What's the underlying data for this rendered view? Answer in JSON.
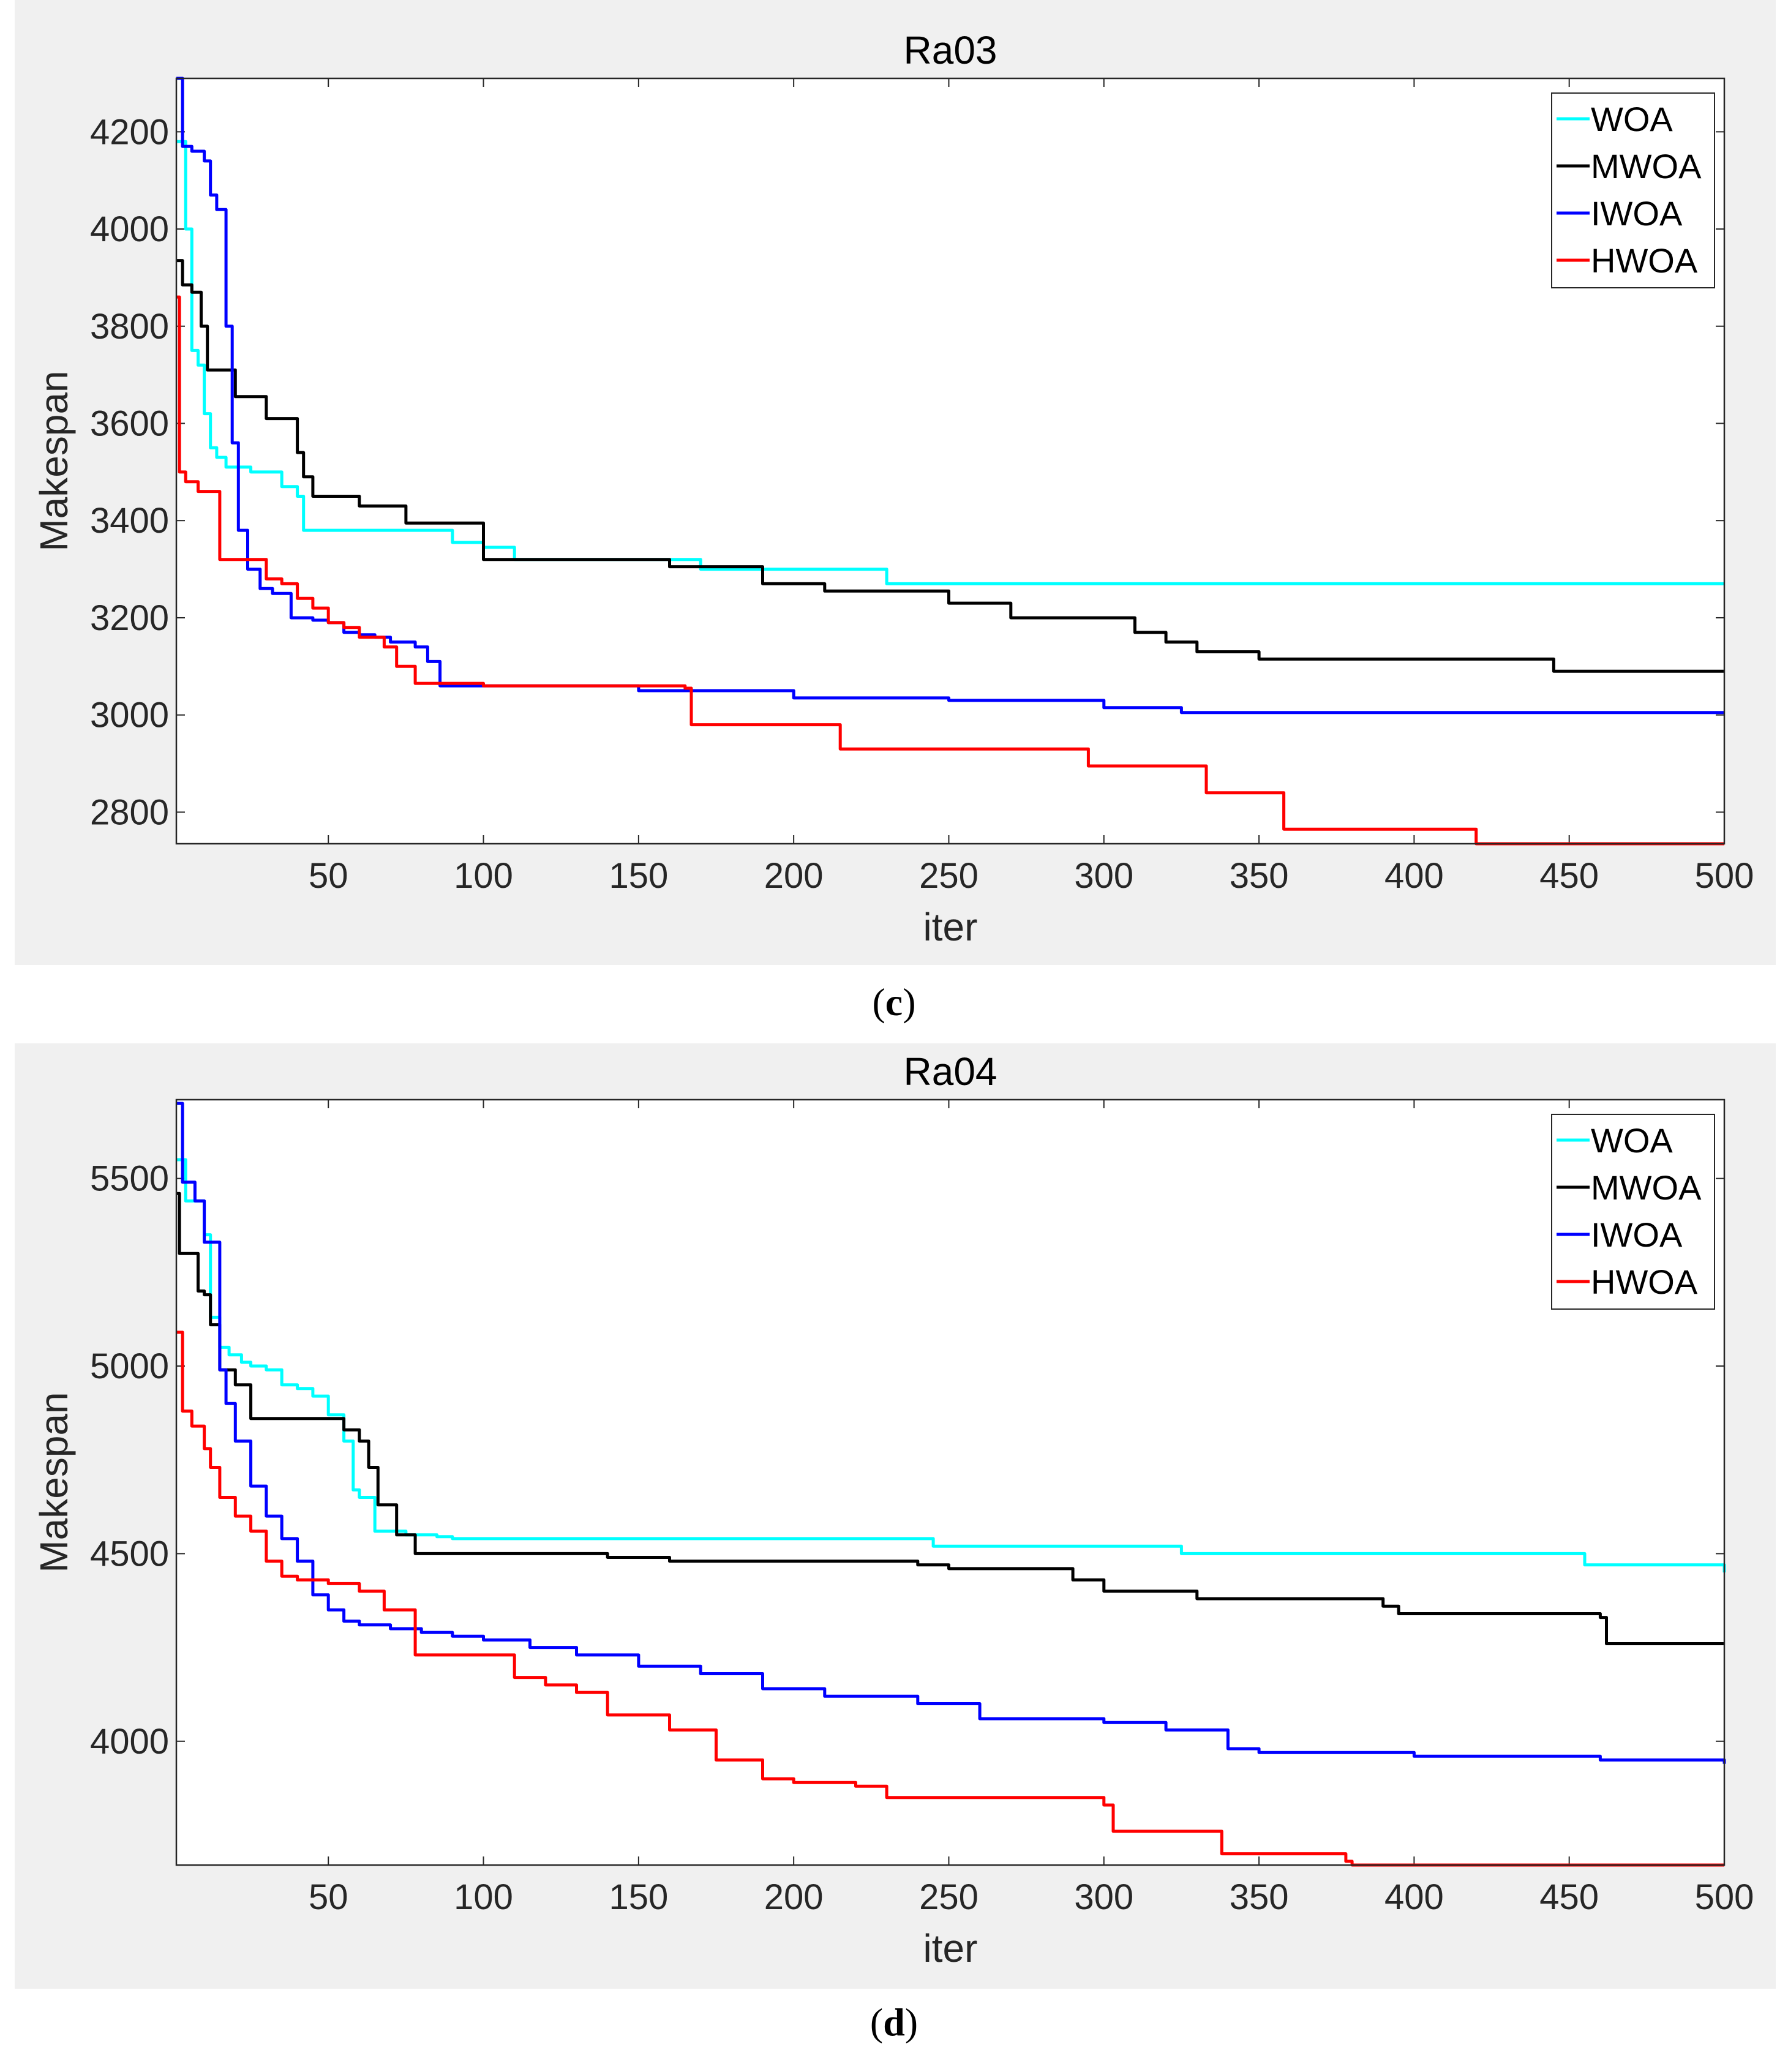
{
  "chart_data": [
    {
      "type": "line",
      "panel": "c",
      "title": "Ra03",
      "xlabel": "iter",
      "ylabel": "Makespan",
      "xlim": [
        1,
        500
      ],
      "ylim": [
        2735,
        4310
      ],
      "xticks": [
        50,
        100,
        150,
        200,
        250,
        300,
        350,
        400,
        450,
        500
      ],
      "yticks": [
        2800,
        3000,
        3200,
        3400,
        3600,
        3800,
        4000,
        4200
      ],
      "legend_position": "top-right",
      "series": [
        {
          "name": "WOA",
          "color": "#00ffff",
          "x": [
            1,
            4,
            6,
            8,
            10,
            12,
            14,
            17,
            25,
            35,
            40,
            42,
            90,
            100,
            110,
            170,
            230,
            500
          ],
          "y": [
            4180,
            4000,
            3750,
            3720,
            3620,
            3550,
            3530,
            3510,
            3500,
            3470,
            3450,
            3380,
            3355,
            3345,
            3320,
            3300,
            3270,
            3270
          ]
        },
        {
          "name": "MWOA",
          "color": "#000000",
          "x": [
            1,
            3,
            6,
            9,
            11,
            18,
            20,
            30,
            40,
            42,
            45,
            60,
            75,
            99,
            100,
            110,
            160,
            190,
            210,
            250,
            270,
            280,
            310,
            320,
            330,
            350,
            440,
            445,
            500
          ],
          "y": [
            3935,
            3885,
            3870,
            3800,
            3710,
            3710,
            3655,
            3610,
            3540,
            3490,
            3450,
            3430,
            3395,
            3395,
            3320,
            3320,
            3305,
            3270,
            3255,
            3230,
            3200,
            3200,
            3170,
            3150,
            3130,
            3115,
            3115,
            3090,
            3090
          ]
        },
        {
          "name": "IWOA",
          "color": "#0000ff",
          "x": [
            1,
            3,
            6,
            10,
            12,
            14,
            17,
            19,
            21,
            24,
            28,
            32,
            38,
            45,
            50,
            55,
            60,
            65,
            70,
            78,
            82,
            86,
            100,
            150,
            200,
            250,
            300,
            325,
            500
          ],
          "y": [
            4310,
            4170,
            4160,
            4140,
            4070,
            4040,
            3800,
            3560,
            3380,
            3300,
            3260,
            3250,
            3200,
            3195,
            3190,
            3170,
            3165,
            3160,
            3150,
            3140,
            3110,
            3060,
            3060,
            3050,
            3035,
            3030,
            3015,
            3005,
            3005
          ]
        },
        {
          "name": "HWOA",
          "color": "#ff0000",
          "x": [
            1,
            2,
            4,
            8,
            12,
            15,
            20,
            25,
            30,
            35,
            40,
            45,
            50,
            55,
            60,
            68,
            72,
            78,
            100,
            165,
            167,
            210,
            215,
            290,
            295,
            330,
            333,
            355,
            358,
            415,
            420,
            500
          ],
          "y": [
            3860,
            3500,
            3480,
            3460,
            3460,
            3320,
            3320,
            3320,
            3280,
            3270,
            3240,
            3220,
            3190,
            3180,
            3160,
            3140,
            3100,
            3065,
            3060,
            3055,
            2980,
            2980,
            2930,
            2930,
            2895,
            2895,
            2840,
            2840,
            2765,
            2765,
            2735,
            2735
          ]
        }
      ]
    },
    {
      "type": "line",
      "panel": "d",
      "title": "Ra04",
      "xlabel": "iter",
      "ylabel": "Makespan",
      "xlim": [
        1,
        500
      ],
      "ylim": [
        3670,
        5710
      ],
      "xticks": [
        50,
        100,
        150,
        200,
        250,
        300,
        350,
        400,
        450,
        500
      ],
      "yticks": [
        4000,
        4500,
        5000,
        5500
      ],
      "legend_position": "top-right",
      "series": [
        {
          "name": "WOA",
          "color": "#00ffff",
          "x": [
            1,
            4,
            8,
            10,
            12,
            15,
            18,
            22,
            25,
            30,
            35,
            40,
            45,
            50,
            55,
            58,
            60,
            65,
            70,
            75,
            80,
            85,
            90,
            100,
            245,
            325,
            455,
            495,
            500
          ],
          "y": [
            5550,
            5440,
            5440,
            5350,
            5130,
            5050,
            5030,
            5010,
            5000,
            4990,
            4950,
            4940,
            4920,
            4870,
            4800,
            4670,
            4650,
            4560,
            4560,
            4550,
            4550,
            4545,
            4540,
            4540,
            4520,
            4500,
            4470,
            4470,
            4450
          ]
        },
        {
          "name": "MWOA",
          "color": "#000000",
          "x": [
            1,
            2,
            5,
            8,
            10,
            12,
            15,
            20,
            25,
            50,
            55,
            60,
            63,
            66,
            70,
            72,
            75,
            78,
            100,
            140,
            160,
            240,
            250,
            290,
            300,
            330,
            390,
            395,
            460,
            462,
            500
          ],
          "y": [
            5460,
            5300,
            5300,
            5200,
            5190,
            5110,
            4990,
            4950,
            4860,
            4860,
            4830,
            4800,
            4730,
            4630,
            4630,
            4550,
            4550,
            4500,
            4500,
            4490,
            4480,
            4470,
            4460,
            4430,
            4400,
            4380,
            4360,
            4340,
            4330,
            4260,
            4260
          ]
        },
        {
          "name": "IWOA",
          "color": "#0000ff",
          "x": [
            1,
            3,
            7,
            10,
            13,
            15,
            17,
            20,
            25,
            30,
            35,
            40,
            45,
            50,
            55,
            60,
            70,
            80,
            90,
            100,
            115,
            130,
            150,
            170,
            190,
            210,
            240,
            260,
            300,
            320,
            340,
            350,
            400,
            450,
            460,
            500
          ],
          "y": [
            5700,
            5490,
            5440,
            5330,
            5330,
            4990,
            4900,
            4800,
            4680,
            4600,
            4540,
            4480,
            4390,
            4350,
            4320,
            4310,
            4300,
            4290,
            4280,
            4270,
            4250,
            4230,
            4200,
            4180,
            4140,
            4120,
            4100,
            4060,
            4050,
            4030,
            3980,
            3970,
            3960,
            3960,
            3950,
            3940
          ]
        },
        {
          "name": "HWOA",
          "color": "#ff0000",
          "x": [
            1,
            3,
            6,
            10,
            12,
            15,
            20,
            25,
            30,
            35,
            40,
            45,
            50,
            60,
            68,
            75,
            78,
            100,
            110,
            120,
            130,
            140,
            150,
            160,
            170,
            175,
            180,
            190,
            200,
            220,
            230,
            280,
            300,
            303,
            335,
            338,
            355,
            378,
            380,
            500
          ],
          "y": [
            5090,
            4880,
            4840,
            4780,
            4730,
            4650,
            4600,
            4560,
            4480,
            4440,
            4430,
            4430,
            4420,
            4400,
            4350,
            4350,
            4230,
            4230,
            4170,
            4150,
            4130,
            4070,
            4070,
            4030,
            4030,
            3950,
            3950,
            3900,
            3890,
            3880,
            3850,
            3850,
            3830,
            3760,
            3760,
            3700,
            3700,
            3680,
            3670,
            3670
          ]
        }
      ]
    }
  ],
  "captions": {
    "c": {
      "open": "(",
      "letter": "c",
      "close": ")"
    },
    "d": {
      "open": "(",
      "letter": "d",
      "close": ")"
    }
  }
}
